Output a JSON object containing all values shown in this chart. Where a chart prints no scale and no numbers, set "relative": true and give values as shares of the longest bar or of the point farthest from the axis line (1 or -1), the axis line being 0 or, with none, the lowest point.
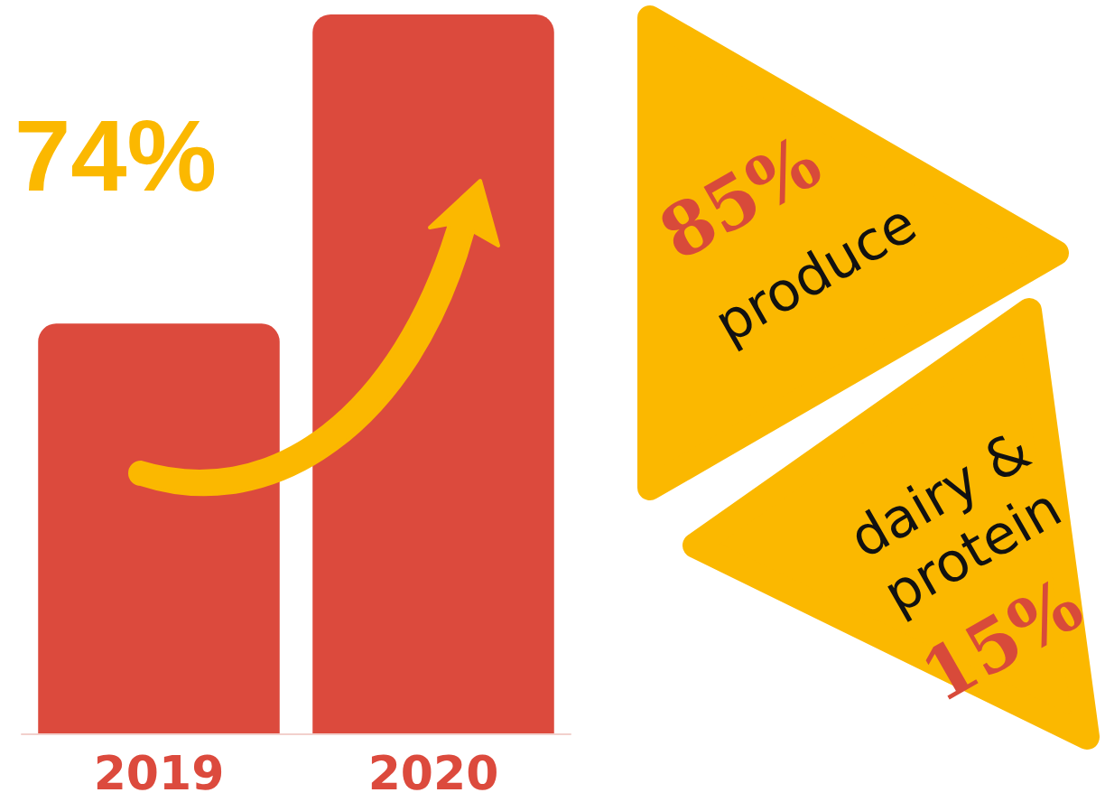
{
  "chart_data": [
    {
      "type": "bar",
      "categories": [
        "2019",
        "2020"
      ],
      "values": [
        0.57,
        1
      ],
      "color": "#dc4a3d",
      "relative": true,
      "annotations": [
        "74%"
      ]
    },
    {
      "type": "other",
      "categories": [
        "produce",
        "dairy & protein"
      ],
      "values": [
        85,
        15
      ],
      "value_labels": [
        "85%",
        "15%"
      ],
      "colors": [
        "#fbb800",
        "#fbb800"
      ]
    }
  ]
}
